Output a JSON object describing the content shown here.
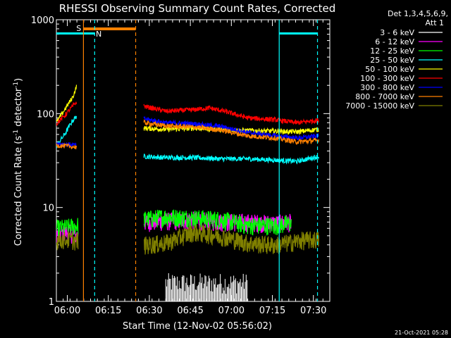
{
  "chart_data": {
    "type": "line",
    "title": "RHESSI Observing Summary Count Rates, Corrected",
    "xlabel": "Start Time (12-Nov-02 05:56:02)",
    "ylabel": "Corrected Count Rate (s",
    "ylabel_sup1": "-1",
    "ylabel_mid": " detector",
    "ylabel_sup2": "-1",
    "ylabel_end": ")",
    "yscale": "log",
    "ylim": [
      1,
      1000
    ],
    "xlim_minutes": [
      0,
      100
    ],
    "x_unit": "minutes since 05:56:02",
    "x_ticks": [
      {
        "t": 4,
        "label": "06:00"
      },
      {
        "t": 19,
        "label": "06:15"
      },
      {
        "t": 34,
        "label": "06:30"
      },
      {
        "t": 49,
        "label": "06:45"
      },
      {
        "t": 64,
        "label": "07:00"
      },
      {
        "t": 79,
        "label": "07:15"
      },
      {
        "t": 94,
        "label": "07:30"
      }
    ],
    "y_ticks": [
      {
        "v": 1,
        "label": "1"
      },
      {
        "v": 10,
        "label": "10"
      },
      {
        "v": 100,
        "label": "100"
      },
      {
        "v": 1000,
        "label": "1000"
      }
    ],
    "legend_title": "Det 1,3,4,5,6,9,",
    "legend_subtitle": "Att 1",
    "legend_position": "top-right",
    "series": [
      {
        "name": "3 - 6 keV",
        "color": "#ffffff",
        "seg1": [],
        "seg2": [
          [
            58,
            1.5
          ],
          [
            60,
            1.7
          ],
          [
            62,
            1.6
          ],
          [
            64,
            1.8
          ],
          [
            66,
            1.5
          ],
          [
            68,
            1.4
          ],
          [
            70,
            1.6
          ]
        ]
      },
      {
        "name": "6 - 12 keV",
        "color": "#ff00ff",
        "seg1": [
          [
            0,
            5.2
          ],
          [
            4,
            5.5
          ],
          [
            8,
            5.0
          ]
        ],
        "seg2": [
          [
            32,
            7.0
          ],
          [
            40,
            7.2
          ],
          [
            50,
            7.4
          ],
          [
            60,
            7.1
          ],
          [
            70,
            7.0
          ],
          [
            80,
            6.8
          ],
          [
            86,
            7.0
          ]
        ]
      },
      {
        "name": "12 - 25 keV",
        "color": "#00ff00",
        "seg1": [
          [
            0,
            6.0
          ],
          [
            4,
            6.2
          ],
          [
            8,
            6.5
          ]
        ],
        "seg2": [
          [
            32,
            7.5
          ],
          [
            40,
            8.0
          ],
          [
            50,
            7.8
          ],
          [
            60,
            7.5
          ],
          [
            70,
            6.5
          ],
          [
            80,
            6.5
          ],
          [
            86,
            6.8
          ]
        ]
      },
      {
        "name": "25 - 50 keV",
        "color": "#00ffff",
        "seg1": [
          [
            0,
            45
          ],
          [
            3,
            60
          ],
          [
            6,
            85
          ],
          [
            7.5,
            95
          ]
        ],
        "seg2": [
          [
            32,
            35
          ],
          [
            40,
            34
          ],
          [
            50,
            34
          ],
          [
            60,
            33
          ],
          [
            70,
            33
          ],
          [
            80,
            32
          ],
          [
            88,
            31
          ],
          [
            92,
            33
          ],
          [
            96,
            35
          ]
        ]
      },
      {
        "name": "50 - 100 keV",
        "color": "#ffff00",
        "seg1": [
          [
            0,
            80
          ],
          [
            3,
            110
          ],
          [
            6,
            150
          ],
          [
            7.5,
            200
          ]
        ],
        "seg2": [
          [
            32,
            70
          ],
          [
            40,
            68
          ],
          [
            50,
            70
          ],
          [
            60,
            68
          ],
          [
            70,
            66
          ],
          [
            80,
            65
          ],
          [
            88,
            64
          ],
          [
            96,
            68
          ]
        ]
      },
      {
        "name": "100 - 300 keV",
        "color": "#ff0000",
        "seg1": [
          [
            0,
            78
          ],
          [
            3,
            95
          ],
          [
            6,
            120
          ],
          [
            7.5,
            135
          ]
        ],
        "seg2": [
          [
            32,
            120
          ],
          [
            40,
            106
          ],
          [
            50,
            110
          ],
          [
            56,
            115
          ],
          [
            62,
            105
          ],
          [
            70,
            90
          ],
          [
            80,
            86
          ],
          [
            88,
            80
          ],
          [
            96,
            85
          ]
        ]
      },
      {
        "name": "300 - 800 keV",
        "color": "#0000ff",
        "seg1": [
          [
            0,
            48
          ],
          [
            4,
            47
          ],
          [
            7.5,
            46
          ]
        ],
        "seg2": [
          [
            32,
            88
          ],
          [
            40,
            80
          ],
          [
            50,
            78
          ],
          [
            60,
            73
          ],
          [
            70,
            63
          ],
          [
            80,
            58
          ],
          [
            88,
            55
          ],
          [
            96,
            58
          ]
        ]
      },
      {
        "name": "800 - 7000 keV",
        "color": "#ff8000",
        "seg1": [
          [
            0,
            46
          ],
          [
            4,
            45
          ],
          [
            7.5,
            44
          ]
        ],
        "seg2": [
          [
            32,
            80
          ],
          [
            40,
            74
          ],
          [
            50,
            72
          ],
          [
            60,
            67
          ],
          [
            70,
            58
          ],
          [
            80,
            55
          ],
          [
            88,
            50
          ],
          [
            96,
            52
          ]
        ]
      },
      {
        "name": "7000 - 15000 keV",
        "color": "#808000",
        "seg1": [
          [
            0,
            4.5
          ],
          [
            4,
            4.6
          ],
          [
            8,
            4.4
          ]
        ],
        "seg2": [
          [
            32,
            4.0
          ],
          [
            40,
            4.2
          ],
          [
            50,
            5.5
          ],
          [
            60,
            5.0
          ],
          [
            70,
            4.2
          ],
          [
            80,
            4.0
          ],
          [
            90,
            4.5
          ],
          [
            96,
            4.6
          ]
        ]
      }
    ],
    "attenuator_bars": [
      {
        "label": "S",
        "color": "#ff8000",
        "start": 10,
        "end": 29
      }
    ],
    "night_bars": [
      {
        "label": "N",
        "color": "#00ffff",
        "start": 0,
        "end": 14,
        "label_at": 15.5
      },
      {
        "label": "",
        "color": "#00ffff",
        "start": 81.5,
        "end": 95.5,
        "label_at": null
      }
    ],
    "vlines": [
      {
        "t": 9.9,
        "color": "#ff8000",
        "style": "solid"
      },
      {
        "t": 14,
        "color": "#00ffff",
        "style": "dashed"
      },
      {
        "t": 29,
        "color": "#ff8000",
        "style": "dashed"
      },
      {
        "t": 81.5,
        "color": "#00ffff",
        "style": "solid"
      },
      {
        "t": 95.5,
        "color": "#00ffff",
        "style": "dashed"
      }
    ]
  },
  "footer": {
    "timestamp": "21-Oct-2021 05:28"
  }
}
